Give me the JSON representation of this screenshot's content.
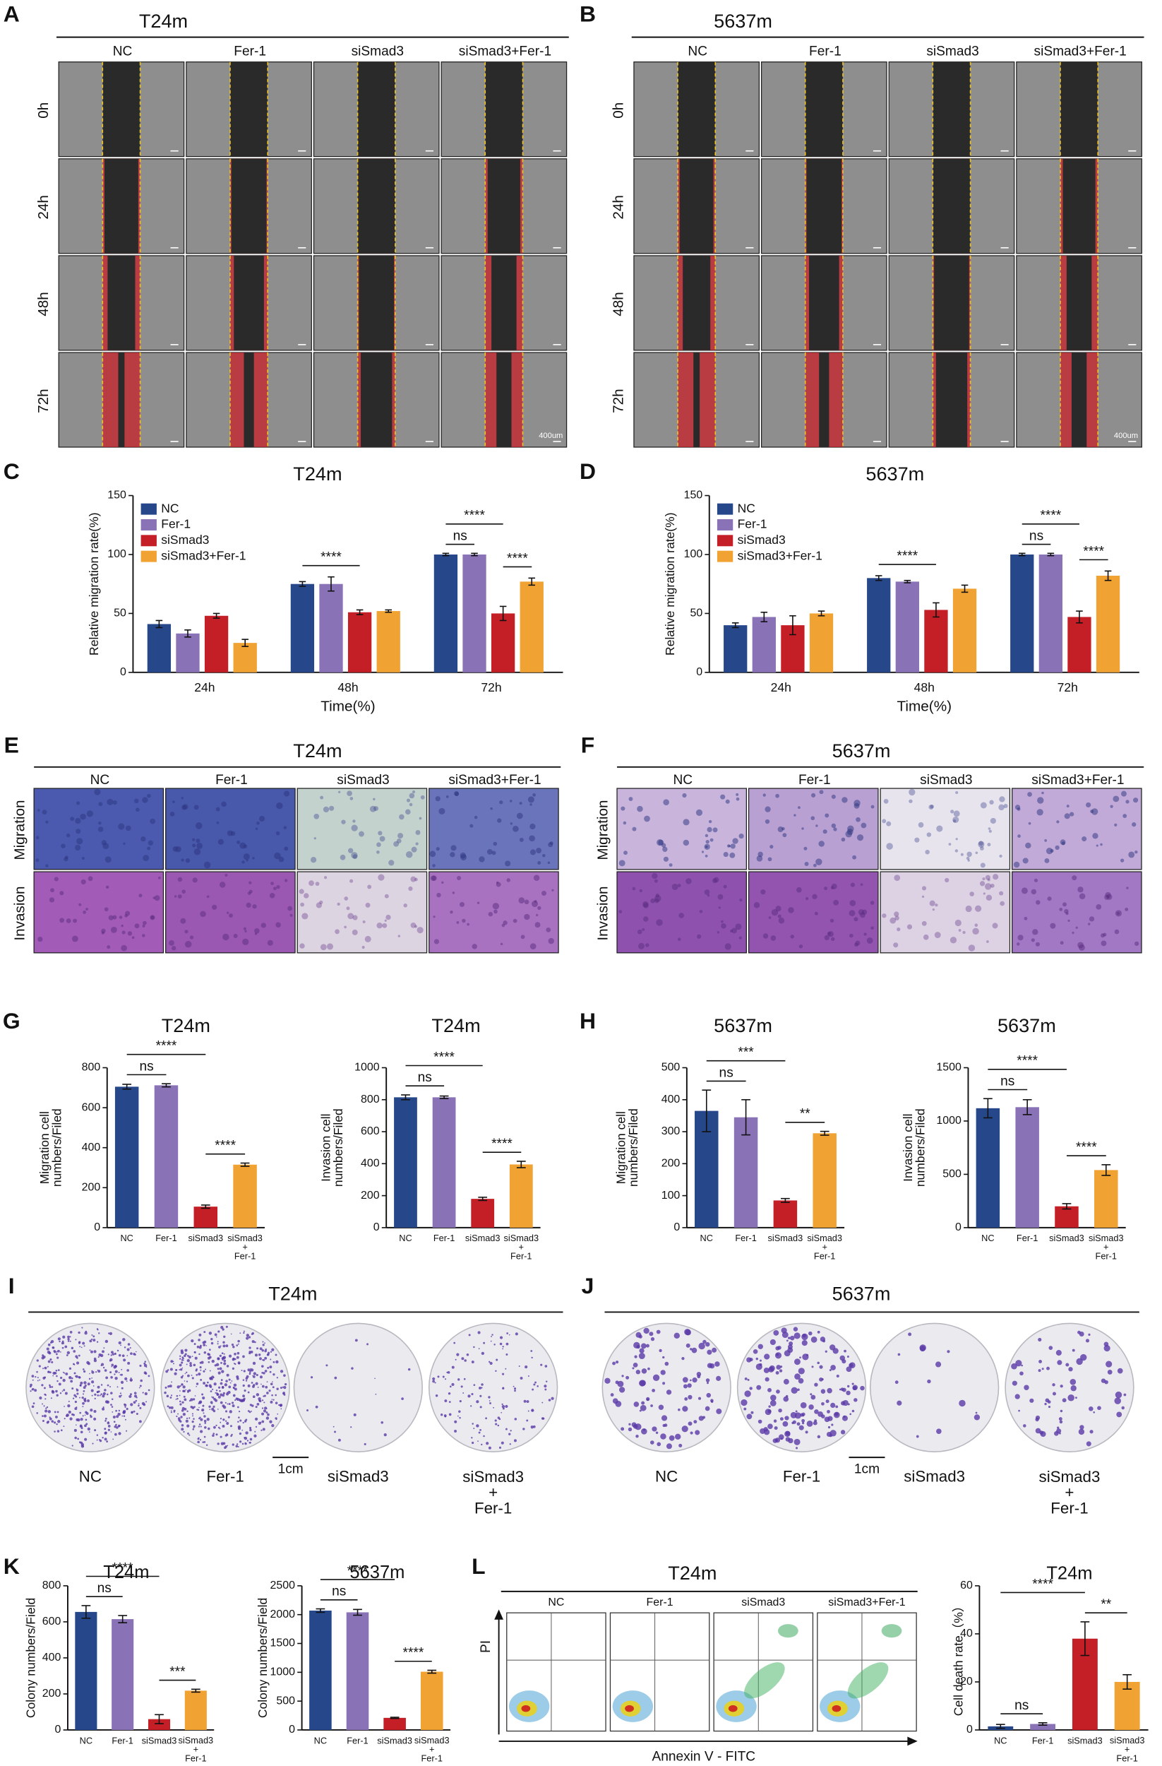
{
  "panel_labels": [
    "A",
    "B",
    "C",
    "D",
    "E",
    "F",
    "G",
    "H",
    "I",
    "J",
    "K",
    "L"
  ],
  "wound_panels": [
    {
      "title": "T24m",
      "columns": [
        "NC",
        "Fer-1",
        "siSmad3",
        "siSmad3+Fer-1"
      ],
      "rows": [
        "0h",
        "24h",
        "48h",
        "72h"
      ],
      "scale": "400um"
    },
    {
      "title": "5637m",
      "columns": [
        "NC",
        "Fer-1",
        "siSmad3",
        "siSmad3+Fer-1"
      ],
      "rows": [
        "0h",
        "24h",
        "48h",
        "72h"
      ],
      "scale": "400um"
    }
  ],
  "transwell_panels": [
    {
      "title": "T24m",
      "columns": [
        "NC",
        "Fer-1",
        "siSmad3",
        "siSmad3+Fer-1"
      ],
      "rows": [
        "Migration",
        "Invasion"
      ]
    },
    {
      "title": "5637m",
      "columns": [
        "NC",
        "Fer-1",
        "siSmad3",
        "siSmad3+Fer-1"
      ],
      "rows": [
        "Migration",
        "Invasion"
      ]
    }
  ],
  "colony_panels": [
    {
      "title": "T24m",
      "labels": [
        "NC",
        "Fer-1",
        "siSmad3",
        "siSmad3\n+\nFer-1"
      ],
      "scale": "1cm"
    },
    {
      "title": "5637m",
      "labels": [
        "NC",
        "Fer-1",
        "siSmad3",
        "siSmad3\n+\nFer-1"
      ],
      "scale": "1cm"
    }
  ],
  "flow_panel": {
    "title": "T24m",
    "columns": [
      "NC",
      "Fer-1",
      "siSmad3",
      "siSmad3+Fer-1"
    ],
    "y_label": "PI",
    "x_label": "Annexin V - FITC"
  },
  "chart_data": [
    {
      "type": "bar",
      "title": "T24m",
      "y_label": "Relative migration rate(%)",
      "x_label": "Time(%)",
      "categories": [
        "24h",
        "48h",
        "72h"
      ],
      "series": [
        {
          "name": "NC",
          "color": "#26478a",
          "values": [
            41,
            75,
            100
          ],
          "errors": [
            3,
            2,
            1
          ]
        },
        {
          "name": "Fer-1",
          "color": "#8a72b6",
          "values": [
            33,
            75,
            100
          ],
          "errors": [
            3,
            6,
            1
          ]
        },
        {
          "name": "siSmad3",
          "color": "#c41e26",
          "values": [
            48,
            51,
            50
          ],
          "errors": [
            2,
            2,
            6
          ]
        },
        {
          "name": "siSmad3+Fer-1",
          "color": "#f0a233",
          "values": [
            25,
            52,
            77
          ],
          "errors": [
            3,
            1,
            3
          ]
        }
      ],
      "ylim": [
        0,
        150
      ],
      "yticks": [
        0,
        50,
        100,
        150
      ],
      "legend": "upper left",
      "annotations": [
        "****",
        "ns",
        "****",
        "****"
      ]
    },
    {
      "type": "bar",
      "title": "5637m",
      "y_label": "Relative migration rate(%)",
      "x_label": "Time(%)",
      "categories": [
        "24h",
        "48h",
        "72h"
      ],
      "series": [
        {
          "name": "NC",
          "color": "#26478a",
          "values": [
            40,
            80,
            100
          ],
          "errors": [
            2,
            2,
            1
          ]
        },
        {
          "name": "Fer-1",
          "color": "#8a72b6",
          "values": [
            47,
            77,
            100
          ],
          "errors": [
            4,
            1,
            1
          ]
        },
        {
          "name": "siSmad3",
          "color": "#c41e26",
          "values": [
            40,
            53,
            47
          ],
          "errors": [
            8,
            6,
            5
          ]
        },
        {
          "name": "siSmad3+Fer-1",
          "color": "#f0a233",
          "values": [
            50,
            71,
            82
          ],
          "errors": [
            2,
            3,
            4
          ]
        }
      ],
      "ylim": [
        0,
        150
      ],
      "yticks": [
        0,
        50,
        100,
        150
      ],
      "legend": "upper left",
      "annotations": [
        "****",
        "ns",
        "****",
        "****"
      ]
    },
    {
      "type": "bar",
      "title": "T24m",
      "y_label": "Migration cell\nnumbers/Filed",
      "categories": [
        "NC",
        "Fer-1",
        "siSmad3",
        "siSmad3\n+\nFer-1"
      ],
      "values": [
        705,
        712,
        105,
        315
      ],
      "errors": [
        12,
        8,
        8,
        8
      ],
      "colors": [
        "#26478a",
        "#8a72b6",
        "#c41e26",
        "#f0a233"
      ],
      "ylim": [
        0,
        800
      ],
      "yticks": [
        0,
        200,
        400,
        600,
        800
      ],
      "annotations": [
        "ns",
        "****",
        "****"
      ]
    },
    {
      "type": "bar",
      "title": "T24m",
      "y_label": "Invasion cell\nnumbers/Filed",
      "categories": [
        "NC",
        "Fer-1",
        "siSmad3",
        "siSmad3\n+\nFer-1"
      ],
      "values": [
        815,
        815,
        180,
        395
      ],
      "errors": [
        15,
        8,
        10,
        20
      ],
      "colors": [
        "#26478a",
        "#8a72b6",
        "#c41e26",
        "#f0a233"
      ],
      "ylim": [
        0,
        1000
      ],
      "yticks": [
        0,
        200,
        400,
        600,
        800,
        1000
      ],
      "annotations": [
        "ns",
        "****",
        "****"
      ]
    },
    {
      "type": "bar",
      "title": "5637m",
      "y_label": "Migration cell\nnumbers/Filed",
      "categories": [
        "NC",
        "Fer-1",
        "siSmad3",
        "siSmad3\n+\nFer-1"
      ],
      "values": [
        365,
        345,
        85,
        295
      ],
      "errors": [
        65,
        55,
        6,
        6
      ],
      "colors": [
        "#26478a",
        "#8a72b6",
        "#c41e26",
        "#f0a233"
      ],
      "ylim": [
        0,
        500
      ],
      "yticks": [
        0,
        100,
        200,
        300,
        400,
        500
      ],
      "annotations": [
        "ns",
        "***",
        "**"
      ]
    },
    {
      "type": "bar",
      "title": "5637m",
      "y_label": "Invasion cell\nnumbers/Filed",
      "categories": [
        "NC",
        "Fer-1",
        "siSmad3",
        "siSmad3\n+\nFer-1"
      ],
      "values": [
        1120,
        1130,
        200,
        540
      ],
      "errors": [
        90,
        70,
        25,
        50
      ],
      "colors": [
        "#26478a",
        "#8a72b6",
        "#c41e26",
        "#f0a233"
      ],
      "ylim": [
        0,
        1500
      ],
      "yticks": [
        0,
        500,
        1000,
        1500
      ],
      "annotations": [
        "ns",
        "****",
        "****"
      ]
    },
    {
      "type": "bar",
      "title": "T24m",
      "y_label": "Colony numbers/Field",
      "categories": [
        "NC",
        "Fer-1",
        "siSmad3",
        "siSmad3\n+\nFer-1"
      ],
      "values": [
        655,
        615,
        60,
        218
      ],
      "errors": [
        35,
        20,
        25,
        8
      ],
      "colors": [
        "#26478a",
        "#8a72b6",
        "#c41e26",
        "#f0a233"
      ],
      "ylim": [
        0,
        800
      ],
      "yticks": [
        0,
        200,
        400,
        600,
        800
      ],
      "annotations": [
        "ns",
        "****",
        "***"
      ]
    },
    {
      "type": "bar",
      "title": "5637m",
      "y_label": "Colony numbers/Field",
      "categories": [
        "NC",
        "Fer-1",
        "siSmad3",
        "siSmad3\n+\nFer-1"
      ],
      "values": [
        2070,
        2040,
        210,
        1010
      ],
      "errors": [
        30,
        50,
        10,
        25
      ],
      "colors": [
        "#26478a",
        "#8a72b6",
        "#c41e26",
        "#f0a233"
      ],
      "ylim": [
        0,
        2500
      ],
      "yticks": [
        0,
        500,
        1000,
        1500,
        2000,
        2500
      ],
      "annotations": [
        "ns",
        "****",
        "****"
      ]
    },
    {
      "type": "bar",
      "title": "T24m",
      "y_label": "Cell death rate（%）",
      "categories": [
        "NC",
        "Fer-1",
        "siSmad3",
        "siSmad3\n+\nFer-1"
      ],
      "values": [
        1.5,
        2.5,
        38,
        20
      ],
      "errors": [
        0.8,
        0.5,
        7,
        3
      ],
      "colors": [
        "#26478a",
        "#8a72b6",
        "#c41e26",
        "#f0a233"
      ],
      "ylim": [
        0,
        60
      ],
      "yticks": [
        0,
        20,
        40,
        60
      ],
      "annotations": [
        "ns",
        "****",
        "**"
      ]
    }
  ]
}
